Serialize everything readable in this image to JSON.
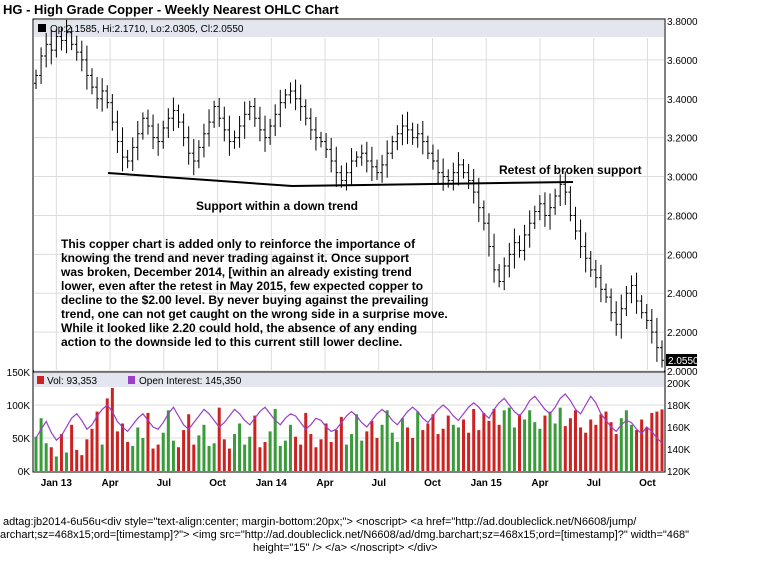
{
  "title": "HG - High Grade Copper - Weekly Nearest OHLC Chart",
  "chart_data": {
    "type": "ohlc",
    "price_panel": {
      "ohlc_label": "Op:2.1585, Hi:2.1710, Lo:2.0305, Cl:2.0550",
      "last_price": "2.0550",
      "y_ticks": [
        "2.0000",
        "2.2000",
        "2.4000",
        "2.6000",
        "2.8000",
        "3.0000",
        "3.2000",
        "3.4000",
        "3.6000",
        "3.8000"
      ],
      "ylim": [
        2.0,
        3.8
      ],
      "closes": [
        3.52,
        3.62,
        3.68,
        3.65,
        3.72,
        3.7,
        3.74,
        3.68,
        3.64,
        3.6,
        3.52,
        3.46,
        3.4,
        3.44,
        3.38,
        3.28,
        3.18,
        3.1,
        3.08,
        3.15,
        3.22,
        3.3,
        3.26,
        3.2,
        3.18,
        3.25,
        3.3,
        3.34,
        3.28,
        3.2,
        3.12,
        3.08,
        3.15,
        3.22,
        3.28,
        3.36,
        3.3,
        3.24,
        3.18,
        3.2,
        3.26,
        3.32,
        3.36,
        3.3,
        3.24,
        3.2,
        3.26,
        3.32,
        3.38,
        3.42,
        3.44,
        3.4,
        3.36,
        3.3,
        3.24,
        3.2,
        3.18,
        3.14,
        3.08,
        3.02,
        2.98,
        3.02,
        3.08,
        3.1,
        3.12,
        3.08,
        3.05,
        3.02,
        3.06,
        3.12,
        3.18,
        3.22,
        3.26,
        3.24,
        3.2,
        3.22,
        3.18,
        3.12,
        3.08,
        3.02,
        3.0,
        2.98,
        3.02,
        3.06,
        3.02,
        2.98,
        2.92,
        2.84,
        2.76,
        2.64,
        2.52,
        2.46,
        2.54,
        2.6,
        2.66,
        2.62,
        2.7,
        2.76,
        2.82,
        2.86,
        2.8,
        2.84,
        2.9,
        2.96,
        2.92,
        2.8,
        2.72,
        2.64,
        2.58,
        2.52,
        2.48,
        2.42,
        2.38,
        2.3,
        2.24,
        2.32,
        2.4,
        2.44,
        2.36,
        2.3,
        2.26,
        2.2,
        2.12,
        2.055
      ],
      "annotations": [
        "Support within a down trend",
        "Retest of broken support",
        "This copper chart is added only to reinforce the importance of",
        "knowing the trend and never trading against it.   Once support",
        "was broken, December 2014, [within an already existing trend",
        "lower, even after the retest in May 2015, few expected copper to",
        "decline to the $2.00 level.  By never buying against the prevailing",
        "trend, one can not get caught on the wrong side in a surprise move.",
        "While it looked like 2.20 could hold, the absence of any ending",
        "action to the downside led to this current still lower decline."
      ]
    },
    "volume_panel": {
      "vol_label": "Vol: 93,353",
      "oi_label": "Open Interest: 145,350",
      "left_ticks": [
        "0K",
        "50K",
        "100K",
        "150K"
      ],
      "right_ticks": [
        "120K",
        "140K",
        "160K",
        "180K",
        "200K"
      ],
      "volume_max": 150000,
      "oi_range": [
        120000,
        210000
      ],
      "volume": [
        52000,
        80000,
        42000,
        36000,
        22000,
        56000,
        28000,
        70000,
        32000,
        24000,
        48000,
        64000,
        90000,
        40000,
        110000,
        130000,
        60000,
        72000,
        44000,
        38000,
        66000,
        50000,
        88000,
        34000,
        40000,
        58000,
        92000,
        46000,
        36000,
        62000,
        86000,
        40000,
        54000,
        70000,
        38000,
        42000,
        96000,
        48000,
        34000,
        56000,
        72000,
        40000,
        52000,
        84000,
        36000,
        44000,
        60000,
        94000,
        38000,
        46000,
        70000,
        52000,
        40000,
        88000,
        56000,
        36000,
        48000,
        72000,
        44000,
        62000,
        82000,
        40000,
        56000,
        86000,
        46000,
        60000,
        76000,
        50000,
        70000,
        92000,
        58000,
        44000,
        80000,
        66000,
        50000,
        90000,
        62000,
        72000,
        86000,
        56000,
        64000,
        84000,
        70000,
        66000,
        78000,
        58000,
        94000,
        62000,
        88000,
        76000,
        94000,
        70000,
        92000,
        96000,
        66000,
        86000,
        78000,
        92000,
        74000,
        64000,
        84000,
        90000,
        72000,
        96000,
        68000,
        80000,
        92000,
        66000,
        58000,
        78000,
        70000,
        86000,
        90000,
        74000,
        56000,
        80000,
        92000,
        70000,
        62000,
        78000,
        66000,
        88000,
        90000,
        93353
      ],
      "open_interest": [
        150000,
        158000,
        165000,
        155000,
        148000,
        152000,
        160000,
        168000,
        172000,
        166000,
        158000,
        162000,
        170000,
        176000,
        180000,
        174000,
        165000,
        160000,
        156000,
        162000,
        168000,
        172000,
        166000,
        160000,
        158000,
        164000,
        172000,
        178000,
        170000,
        162000,
        158000,
        164000,
        170000,
        176000,
        172000,
        166000,
        160000,
        164000,
        170000,
        176000,
        172000,
        166000,
        162000,
        168000,
        174000,
        178000,
        172000,
        166000,
        162000,
        168000,
        172000,
        170000,
        164000,
        158000,
        162000,
        168000,
        166000,
        160000,
        156000,
        158000,
        164000,
        170000,
        174000,
        170000,
        164000,
        160000,
        166000,
        172000,
        176000,
        172000,
        166000,
        162000,
        168000,
        174000,
        178000,
        174000,
        168000,
        164000,
        170000,
        176000,
        180000,
        176000,
        170000,
        166000,
        172000,
        178000,
        182000,
        178000,
        172000,
        168000,
        176000,
        182000,
        186000,
        180000,
        174000,
        170000,
        176000,
        184000,
        188000,
        182000,
        176000,
        172000,
        178000,
        186000,
        190000,
        184000,
        176000,
        172000,
        180000,
        188000,
        182000,
        172000,
        166000,
        160000,
        156000,
        162000,
        166000,
        164000,
        158000,
        154000,
        160000,
        156000,
        150000,
        145350
      ]
    },
    "x_ticks": [
      "Jan 13",
      "Apr",
      "Jul",
      "Oct",
      "Jan 14",
      "Apr",
      "Jul",
      "Oct",
      "Jan 15",
      "Apr",
      "Jul",
      "Oct"
    ],
    "colors": {
      "up_volume": "#3a9b3a",
      "down_volume": "#cc2222",
      "open_interest": "#9a3fc8",
      "grid": "#dddddd",
      "panel_bg": "#ffffff",
      "header_bg": "#e4e6ef",
      "support_line": "#000000"
    }
  },
  "footer": {
    "line1": "adtag:jb2014-6u56u<div style=\"text-align:center; margin-bottom:20px;\"> <noscript> <a href=\"http://ad.doubleclick.net/N6608/jump/",
    "line2": "archart;sz=468x15;ord=[timestamp]?\"> <img src=\"http://ad.doubleclick.net/N6608/ad/dmg.barchart;sz=468x15;ord=[timestamp]?\" width=\"468\"",
    "line3": "height=\"15\" /> </a> </noscript> </div>"
  }
}
